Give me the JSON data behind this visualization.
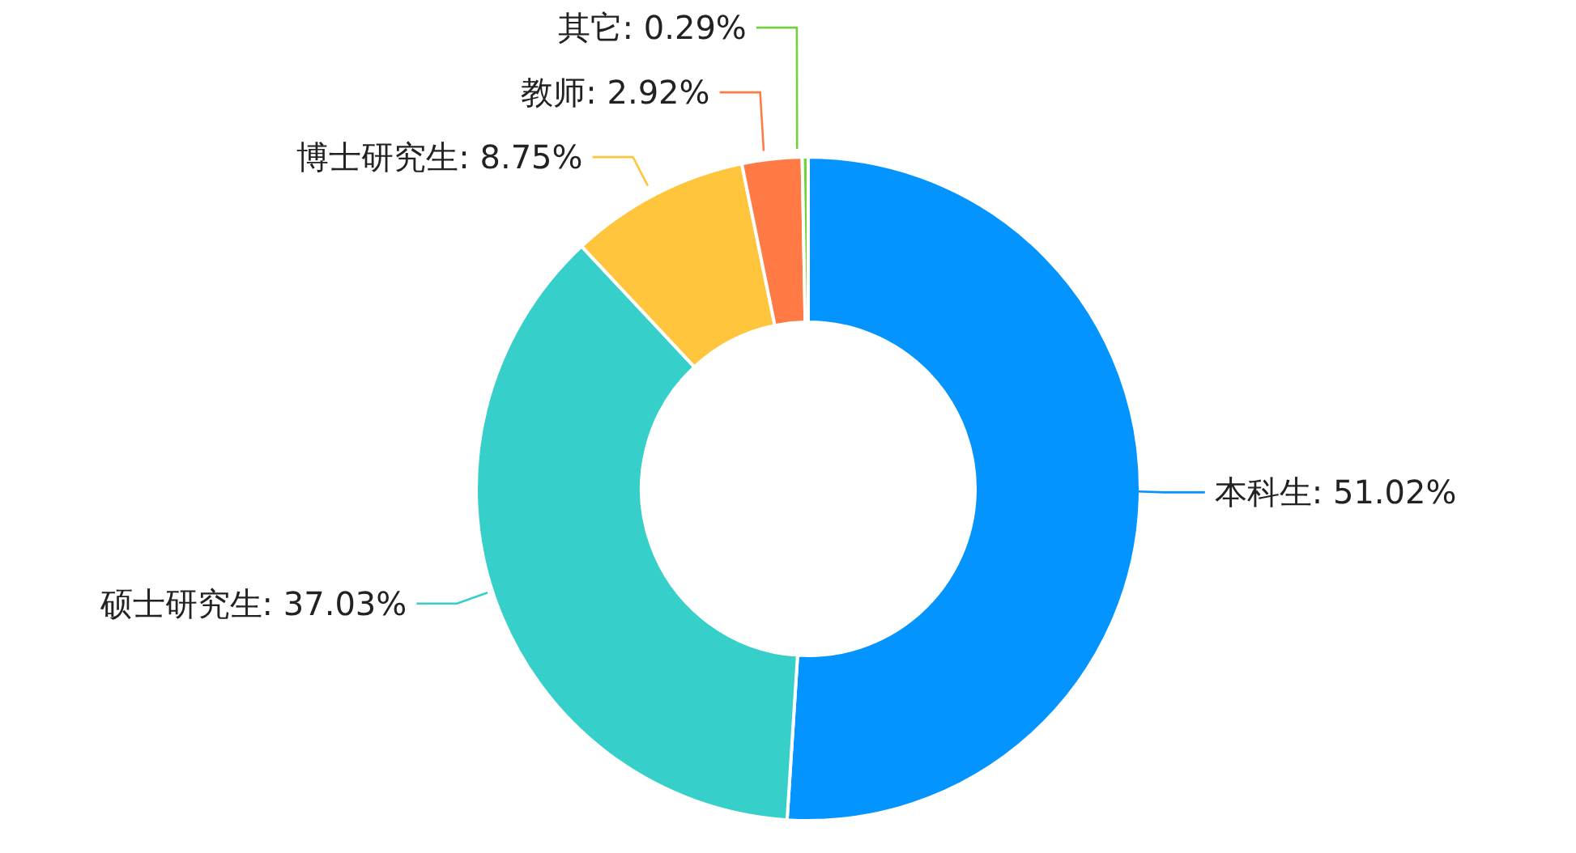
{
  "chart_data": {
    "type": "donut",
    "categories": [
      "本科生",
      "硕士研究生",
      "博士研究生",
      "教师",
      "其它"
    ],
    "values": [
      51.02,
      37.03,
      8.75,
      2.92,
      0.29
    ],
    "colors": [
      "#0394ff",
      "#36cfc9",
      "#ffc53d",
      "#ff7a45",
      "#73d13d"
    ],
    "value_labels": [
      ": 51.02%",
      ": 37.03%",
      ": 8.75%",
      ": 2.92%",
      ": 0.29%"
    ],
    "legend": false
  }
}
